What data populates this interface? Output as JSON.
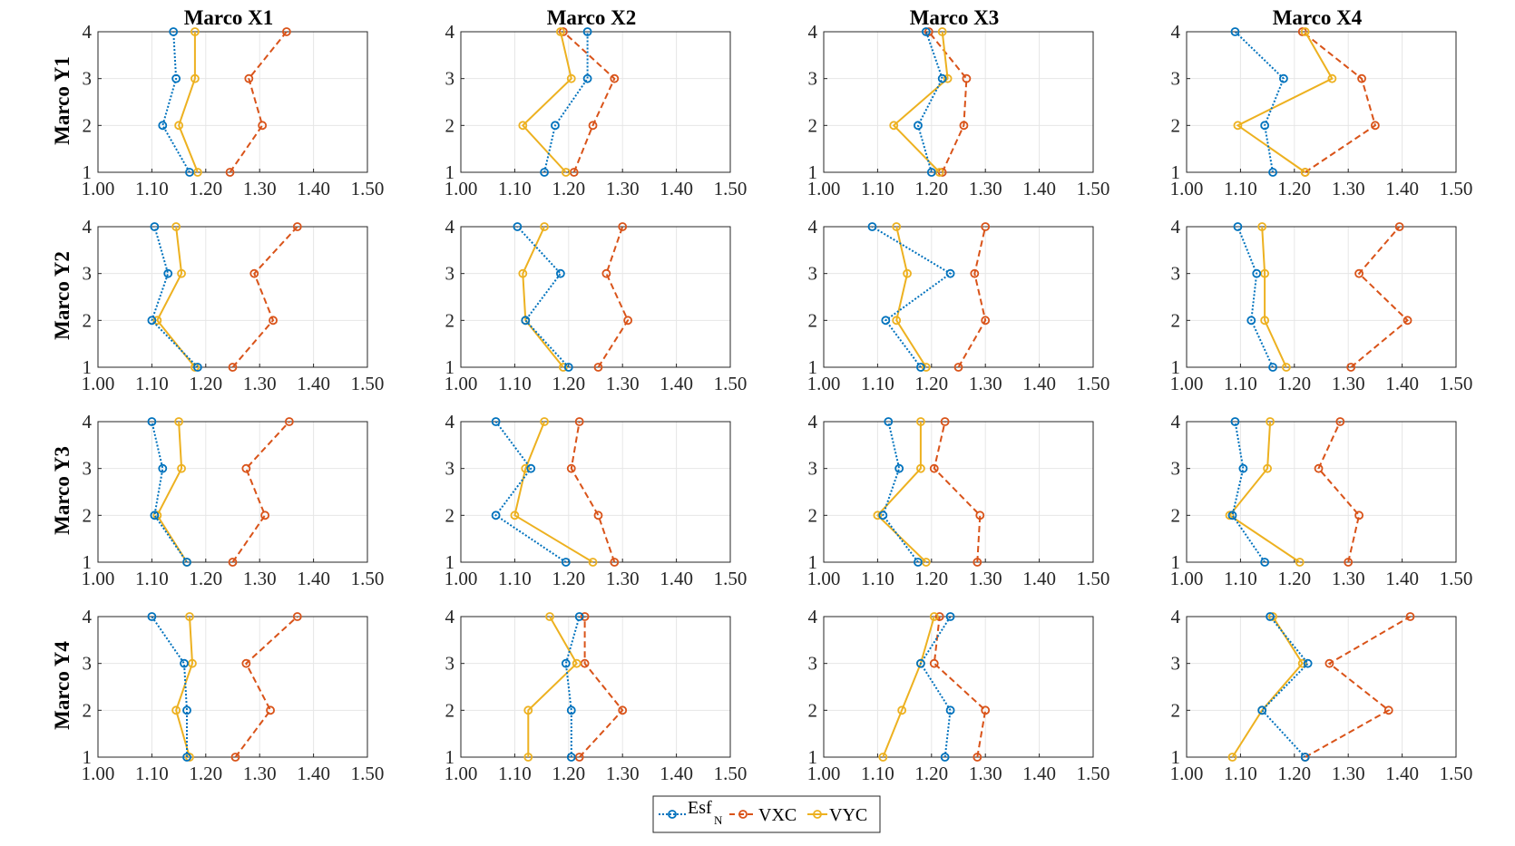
{
  "colors": {
    "EsfN": "#0072BD",
    "VXC": "#D95319",
    "VYC": "#EDB120",
    "grid": "#e6e6e6",
    "axis": "#262626"
  },
  "legend": {
    "esf_main": "Esf",
    "esf_sub": "N",
    "vxc": "VXC",
    "vyc": "VYC"
  },
  "chart_data": {
    "type": "line",
    "orientation": "horizontal-values-vertical-levels",
    "layout": "4x4 grid of subplots",
    "column_titles": [
      "Marco X1",
      "Marco X2",
      "Marco X3",
      "Marco X4"
    ],
    "row_titles": [
      "Marco Y1",
      "Marco Y2",
      "Marco Y3",
      "Marco Y4"
    ],
    "xlim": [
      1.0,
      1.5
    ],
    "xticks": [
      "1.00",
      "1.10",
      "1.20",
      "1.30",
      "1.40",
      "1.50"
    ],
    "ylim": [
      1,
      4
    ],
    "yticks": [
      "1",
      "2",
      "3",
      "4"
    ],
    "levels": [
      1,
      2,
      3,
      4
    ],
    "series_names": [
      "EsfN",
      "VXC",
      "VYC"
    ],
    "panels": [
      [
        {
          "EsfN": [
            1.17,
            1.12,
            1.145,
            1.14
          ],
          "VXC": [
            1.245,
            1.305,
            1.28,
            1.35
          ],
          "VYC": [
            1.185,
            1.15,
            1.18,
            1.18
          ]
        },
        {
          "EsfN": [
            1.155,
            1.175,
            1.235,
            1.235
          ],
          "VXC": [
            1.21,
            1.245,
            1.285,
            1.19
          ],
          "VYC": [
            1.195,
            1.115,
            1.205,
            1.185
          ]
        },
        {
          "EsfN": [
            1.2,
            1.175,
            1.22,
            1.19
          ],
          "VXC": [
            1.22,
            1.26,
            1.265,
            1.195
          ],
          "VYC": [
            1.215,
            1.13,
            1.23,
            1.22
          ]
        },
        {
          "EsfN": [
            1.16,
            1.145,
            1.18,
            1.09
          ],
          "VXC": [
            1.22,
            1.35,
            1.325,
            1.215
          ],
          "VYC": [
            1.22,
            1.095,
            1.27,
            1.22
          ]
        }
      ],
      [
        {
          "EsfN": [
            1.185,
            1.1,
            1.13,
            1.105
          ],
          "VXC": [
            1.25,
            1.325,
            1.29,
            1.37
          ],
          "VYC": [
            1.18,
            1.11,
            1.155,
            1.145
          ]
        },
        {
          "EsfN": [
            1.2,
            1.12,
            1.185,
            1.105
          ],
          "VXC": [
            1.255,
            1.31,
            1.27,
            1.3
          ],
          "VYC": [
            1.19,
            1.12,
            1.115,
            1.155
          ]
        },
        {
          "EsfN": [
            1.18,
            1.115,
            1.235,
            1.09
          ],
          "VXC": [
            1.25,
            1.3,
            1.28,
            1.3
          ],
          "VYC": [
            1.19,
            1.135,
            1.155,
            1.135
          ]
        },
        {
          "EsfN": [
            1.16,
            1.12,
            1.13,
            1.095
          ],
          "VXC": [
            1.305,
            1.41,
            1.32,
            1.395
          ],
          "VYC": [
            1.185,
            1.145,
            1.145,
            1.14
          ]
        }
      ],
      [
        {
          "EsfN": [
            1.165,
            1.105,
            1.12,
            1.1
          ],
          "VXC": [
            1.25,
            1.31,
            1.275,
            1.355
          ],
          "VYC": [
            1.165,
            1.11,
            1.155,
            1.15
          ]
        },
        {
          "EsfN": [
            1.195,
            1.065,
            1.13,
            1.065
          ],
          "VXC": [
            1.285,
            1.255,
            1.205,
            1.22
          ],
          "VYC": [
            1.245,
            1.1,
            1.12,
            1.155
          ]
        },
        {
          "EsfN": [
            1.175,
            1.11,
            1.14,
            1.12
          ],
          "VXC": [
            1.285,
            1.29,
            1.205,
            1.225
          ],
          "VYC": [
            1.19,
            1.1,
            1.18,
            1.18
          ]
        },
        {
          "EsfN": [
            1.145,
            1.085,
            1.105,
            1.09
          ],
          "VXC": [
            1.3,
            1.32,
            1.245,
            1.285
          ],
          "VYC": [
            1.21,
            1.08,
            1.15,
            1.155
          ]
        }
      ],
      [
        {
          "EsfN": [
            1.165,
            1.165,
            1.16,
            1.1
          ],
          "VXC": [
            1.255,
            1.32,
            1.275,
            1.37
          ],
          "VYC": [
            1.17,
            1.145,
            1.175,
            1.17
          ]
        },
        {
          "EsfN": [
            1.205,
            1.205,
            1.195,
            1.22
          ],
          "VXC": [
            1.22,
            1.3,
            1.23,
            1.23
          ],
          "VYC": [
            1.125,
            1.125,
            1.215,
            1.165
          ]
        },
        {
          "EsfN": [
            1.225,
            1.235,
            1.18,
            1.235
          ],
          "VXC": [
            1.285,
            1.3,
            1.205,
            1.215
          ],
          "VYC": [
            1.11,
            1.145,
            1.18,
            1.205
          ]
        },
        {
          "EsfN": [
            1.22,
            1.14,
            1.225,
            1.155
          ],
          "VXC": [
            1.22,
            1.375,
            1.265,
            1.415
          ],
          "VYC": [
            1.085,
            1.14,
            1.215,
            1.16
          ]
        }
      ]
    ]
  }
}
